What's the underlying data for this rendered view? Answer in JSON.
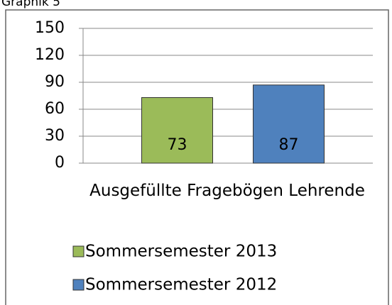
{
  "chart_data": {
    "type": "bar",
    "title": "Graphik 5",
    "categories": [
      "Ausgefüllte Fragebögen Lehrende"
    ],
    "series": [
      {
        "name": "Sommersemester 2013",
        "color": "#9bbb59",
        "values": [
          73
        ]
      },
      {
        "name": "Sommersemester 2012",
        "color": "#4f81bd",
        "values": [
          87
        ]
      }
    ],
    "ylim": [
      0,
      150
    ],
    "yticks": [
      0,
      30,
      60,
      90,
      120,
      150
    ],
    "grid": true,
    "legend": "bottom"
  }
}
